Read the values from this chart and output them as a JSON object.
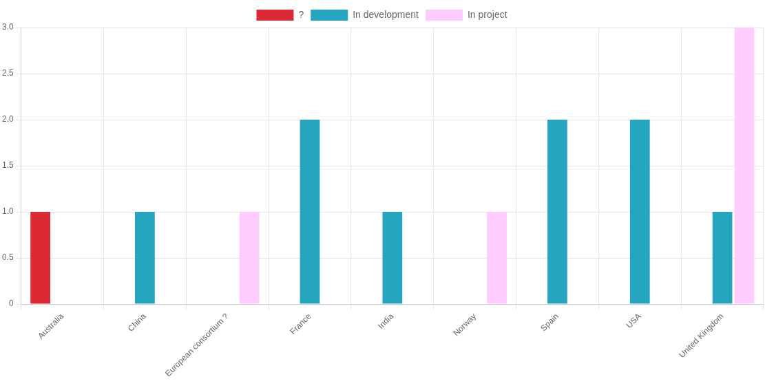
{
  "chart_data": {
    "type": "bar",
    "categories": [
      "Australia",
      "China",
      "European consortium ?",
      "France",
      "India",
      "Norway",
      "Spain",
      "USA",
      "United Kingdom"
    ],
    "series": [
      {
        "name": "?",
        "color": "#dc2a35",
        "values": [
          1,
          null,
          null,
          null,
          null,
          null,
          null,
          null,
          null
        ]
      },
      {
        "name": "In development",
        "color": "#26a5c1",
        "values": [
          null,
          1,
          null,
          2,
          1,
          null,
          2,
          2,
          1
        ]
      },
      {
        "name": "In project",
        "color": "#ffccff",
        "values": [
          null,
          null,
          1,
          null,
          null,
          1,
          null,
          null,
          3
        ]
      }
    ],
    "ylim": [
      0,
      3
    ],
    "yticks": [
      0,
      0.5,
      {
        "value": 1,
        "label": "1.0"
      },
      1.5,
      {
        "value": 2,
        "label": "2.0"
      },
      2.5,
      {
        "value": 3,
        "label": "3.0"
      }
    ],
    "grid": true,
    "legend": "top"
  }
}
